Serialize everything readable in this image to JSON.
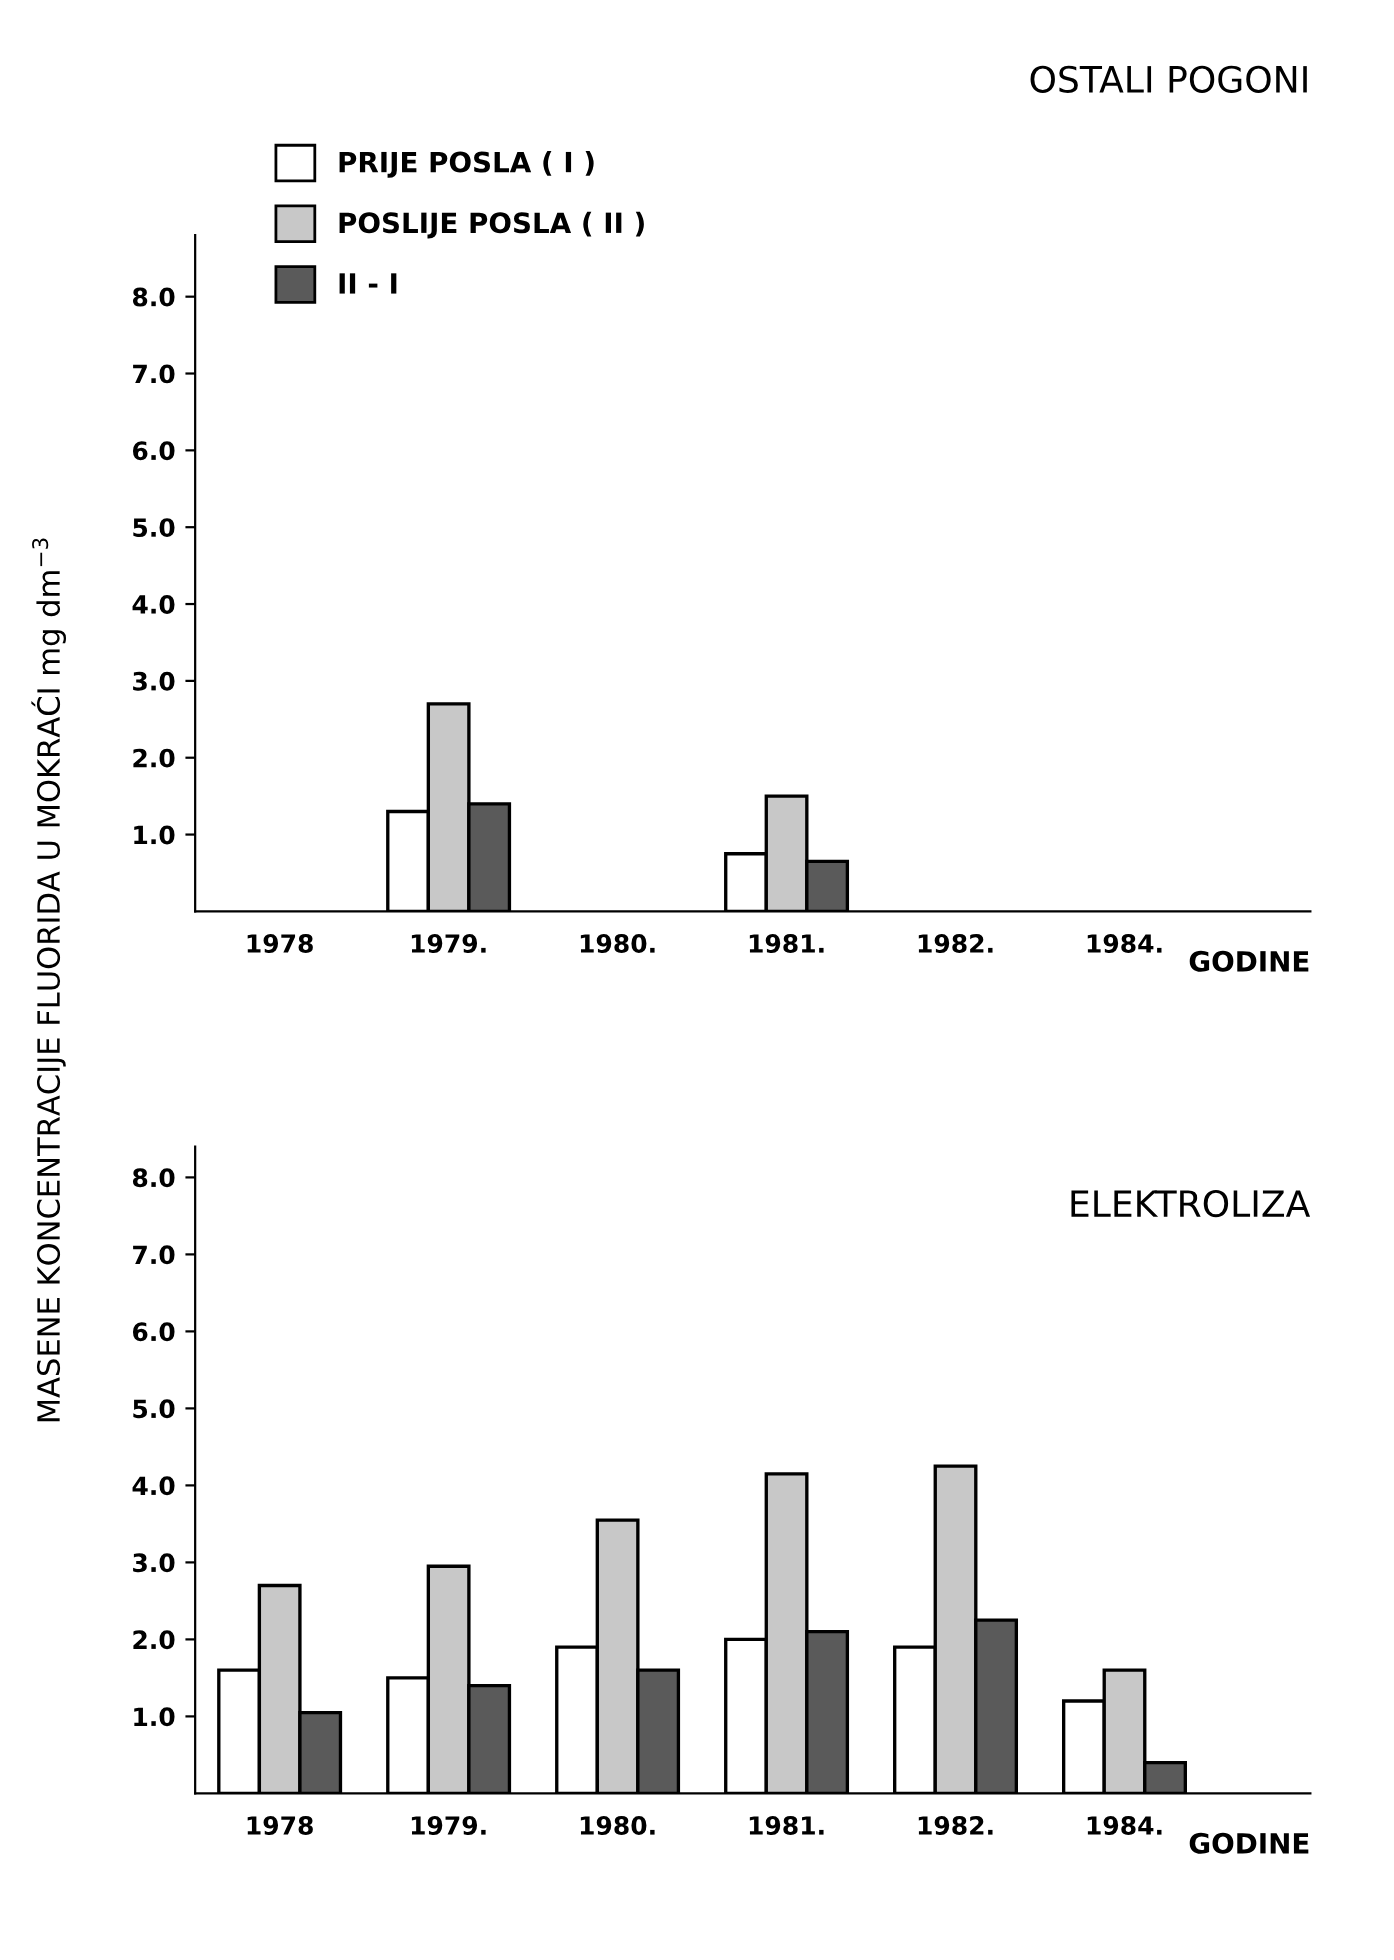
{
  "chart_data": [
    {
      "type": "bar",
      "title": "OSTALI POGONI",
      "ylabel": "MASENE KONCENTRACIJE FLUORIDA U MOKRAĆI mg dm$^{−3}$",
      "xlabel": "GODINE",
      "categories": [
        "1978",
        "1979.",
        "1980.",
        "1981.",
        "1982.",
        "1984."
      ],
      "series": [
        {
          "name": "PRIJE POSLA ( I )",
          "color": "#ffffff",
          "values": [
            null,
            1.3,
            null,
            0.75,
            null,
            null
          ]
        },
        {
          "name": "POSLIJE POSLA ( II )",
          "color": "#c8c8c8",
          "values": [
            null,
            2.7,
            null,
            1.5,
            null,
            null
          ]
        },
        {
          "name": "II - I",
          "color": "#5a5a5a",
          "values": [
            null,
            1.4,
            null,
            0.65,
            null,
            null
          ]
        }
      ],
      "ylim": [
        0,
        8.8
      ],
      "yticks": [
        {
          "value": 1,
          "label": "1.0"
        },
        {
          "value": 2,
          "label": "2.0"
        },
        {
          "value": 3,
          "label": "3.0"
        },
        {
          "value": 4,
          "label": "4.0"
        },
        {
          "value": 5,
          "label": "5.0"
        },
        {
          "value": 6,
          "label": "6.0"
        },
        {
          "value": 7,
          "label": "7.0"
        },
        {
          "value": 8,
          "label": "8.0"
        }
      ],
      "legend": "top left"
    },
    {
      "type": "bar",
      "title": "ELEKTROLIZA",
      "xlabel": "GODINE",
      "categories": [
        "1978",
        "1979.",
        "1980.",
        "1981.",
        "1982.",
        "1984."
      ],
      "series": [
        {
          "color": "#ffffff",
          "values": [
            1.6,
            1.5,
            1.9,
            2.0,
            1.9,
            1.2
          ]
        },
        {
          "color": "#c8c8c8",
          "values": [
            2.7,
            2.95,
            3.55,
            4.15,
            4.25,
            1.6
          ]
        },
        {
          "color": "#5a5a5a",
          "values": [
            1.05,
            1.4,
            1.6,
            2.1,
            2.25,
            0.4
          ]
        }
      ],
      "ylim": [
        0,
        8.4
      ],
      "yticks": [
        {
          "value": 1,
          "label": "1.0"
        },
        {
          "value": 2,
          "label": "2.0"
        },
        {
          "value": 3,
          "label": "3.0"
        },
        {
          "value": 4,
          "label": "4.0"
        },
        {
          "value": 5,
          "label": "5.0"
        },
        {
          "value": 6,
          "label": "6.0"
        },
        {
          "value": 7,
          "label": "7.0"
        },
        {
          "value": 8,
          "label": "8.0"
        }
      ]
    }
  ]
}
